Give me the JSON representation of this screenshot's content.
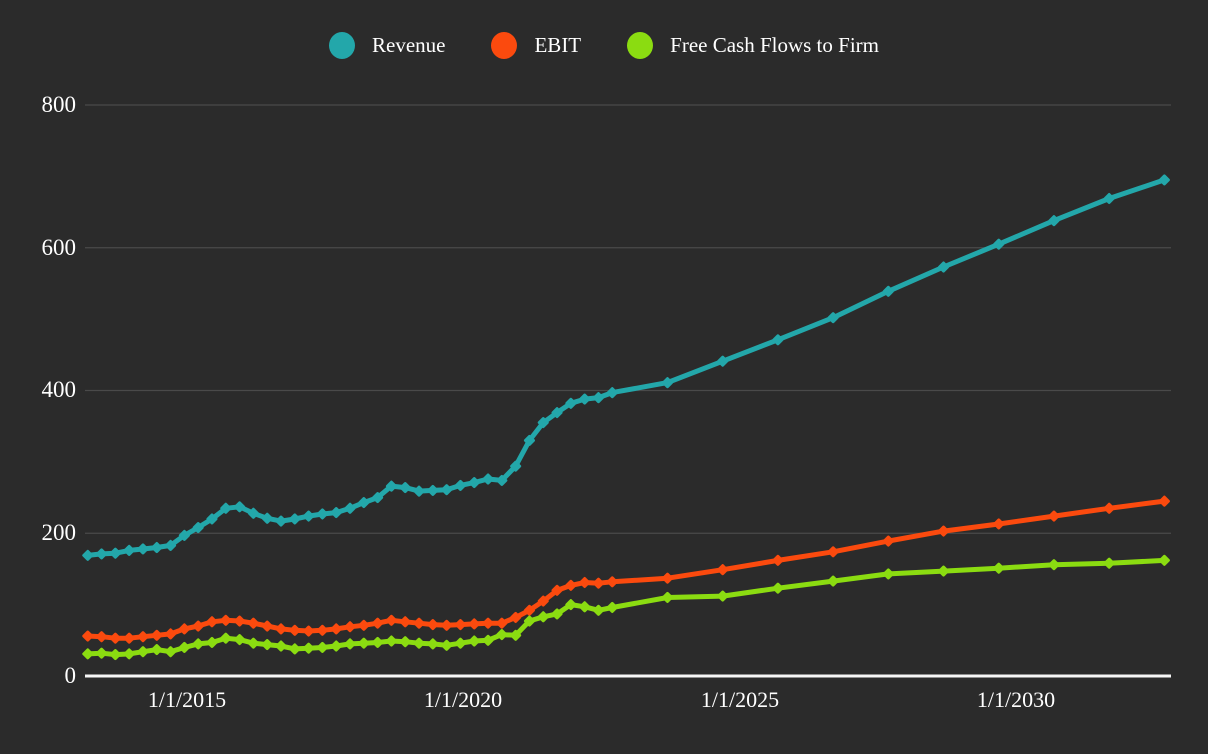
{
  "background": "#2b2b2b",
  "grid_color": "#4a4a4a",
  "axis_color": "#f7f7f7",
  "text_color": "#ffffff",
  "legend": {
    "items": [
      {
        "label": "Revenue",
        "color": "#23a7aa"
      },
      {
        "label": "EBIT",
        "color": "#fb4a0e"
      },
      {
        "label": "Free Cash Flows to Firm",
        "color": "#8bdc11"
      }
    ]
  },
  "chart_data": {
    "type": "line",
    "title": "",
    "xlabel": "",
    "ylabel": "",
    "grid": true,
    "legend_position": "top-center",
    "ylim": [
      0,
      800
    ],
    "xlim": [
      2013.15,
      2032.82
    ],
    "y_ticks": [
      0,
      200,
      400,
      600,
      800
    ],
    "x_ticks": [
      {
        "label": "1/1/2015",
        "year": 2015
      },
      {
        "label": "1/1/2020",
        "year": 2020
      },
      {
        "label": "1/1/2025",
        "year": 2025
      },
      {
        "label": "1/1/2030",
        "year": 2030
      }
    ],
    "x_note": "quarterly history then annual forecast, x in decimal years (estimated)",
    "x": [
      2013.2,
      2013.45,
      2013.7,
      2013.95,
      2014.2,
      2014.45,
      2014.7,
      2014.95,
      2015.2,
      2015.45,
      2015.7,
      2015.95,
      2016.2,
      2016.45,
      2016.7,
      2016.95,
      2017.2,
      2017.45,
      2017.7,
      2017.95,
      2018.2,
      2018.45,
      2018.7,
      2018.95,
      2019.2,
      2019.45,
      2019.7,
      2019.95,
      2020.2,
      2020.45,
      2020.7,
      2020.95,
      2021.2,
      2021.45,
      2021.7,
      2021.95,
      2022.2,
      2022.45,
      2022.7,
      2023.7,
      2024.7,
      2025.7,
      2026.7,
      2027.7,
      2028.7,
      2029.7,
      2030.7,
      2031.7,
      2032.7
    ],
    "series": [
      {
        "name": "Revenue",
        "color": "#23a7aa",
        "values": [
          169,
          171,
          172,
          176,
          178,
          180,
          183,
          197,
          208,
          220,
          235,
          237,
          228,
          221,
          217,
          220,
          224,
          227,
          229,
          235,
          243,
          250,
          266,
          264,
          259,
          260,
          261,
          267,
          271,
          276,
          274,
          294,
          330,
          355,
          369,
          382,
          388,
          390,
          397,
          411,
          441,
          471,
          502,
          539,
          573,
          605,
          638,
          669,
          695
        ]
      },
      {
        "name": "EBIT",
        "color": "#fb4a0e",
        "values": [
          56,
          55,
          53,
          53,
          55,
          57,
          59,
          66,
          70,
          76,
          78,
          77,
          74,
          70,
          66,
          64,
          63,
          64,
          66,
          69,
          71,
          74,
          78,
          76,
          74,
          72,
          71,
          72,
          73,
          74,
          74,
          82,
          92,
          105,
          120,
          127,
          131,
          130,
          132,
          137,
          149,
          162,
          174,
          189,
          203,
          213,
          224,
          235,
          245
        ]
      },
      {
        "name": "Free Cash Flows to Firm",
        "color": "#8bdc11",
        "values": [
          31,
          32,
          30,
          31,
          34,
          37,
          34,
          40,
          45,
          47,
          53,
          51,
          46,
          44,
          42,
          38,
          39,
          40,
          42,
          45,
          46,
          47,
          49,
          48,
          46,
          45,
          43,
          46,
          49,
          50,
          58,
          57,
          77,
          83,
          87,
          100,
          97,
          92,
          96,
          110,
          112,
          123,
          133,
          143,
          147,
          151,
          156,
          158,
          162
        ]
      }
    ]
  }
}
